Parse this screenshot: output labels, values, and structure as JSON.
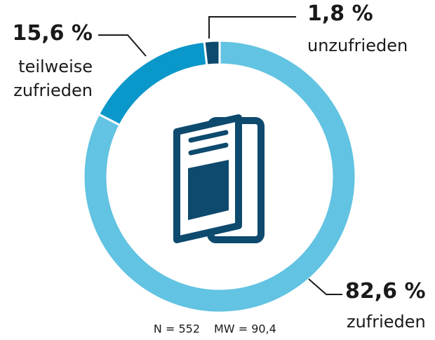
{
  "chart_data": {
    "type": "donut",
    "categories": [
      "zufrieden",
      "teilweise zufrieden",
      "unzufrieden"
    ],
    "values": [
      82.6,
      15.6,
      1.8
    ],
    "value_labels": [
      "82,6 %",
      "15,6 %",
      "1,8 %"
    ],
    "colors": [
      "#62c3e2",
      "#0a97c9",
      "#0d4a6e"
    ],
    "annotations": [
      "N = 552",
      "MW = 90,4"
    ]
  }
}
